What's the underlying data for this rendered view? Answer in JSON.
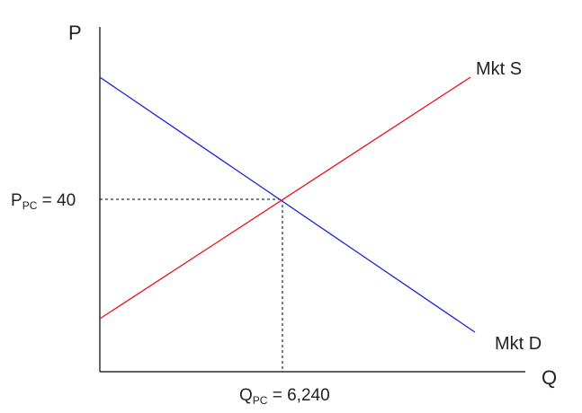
{
  "diagram": {
    "axes": {
      "y_label": "P",
      "x_label": "Q"
    },
    "curves": {
      "supply": {
        "label": "Mkt S",
        "color": "#e8141b"
      },
      "demand": {
        "label": "Mkt D",
        "color": "#1b22e0"
      }
    },
    "equilibrium": {
      "price_label": {
        "main": "P",
        "sub": "PC",
        "rest": " = 40"
      },
      "quantity_label": {
        "main": "Q",
        "sub": "PC",
        "rest": " = 6,240"
      }
    },
    "colors": {
      "axis": "#000000",
      "guide": "#000000",
      "text": "#222222"
    }
  }
}
